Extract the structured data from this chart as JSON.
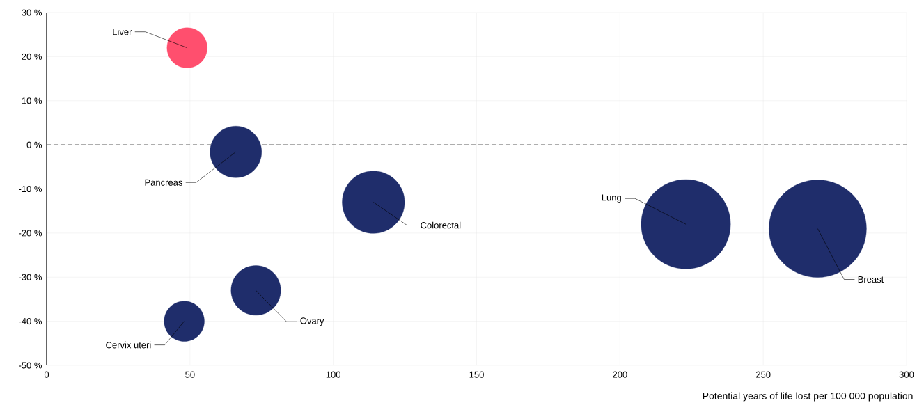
{
  "chart_data": {
    "type": "bubble",
    "xlabel": "Potential years of life lost per 100 000 population",
    "x": [
      49,
      66,
      114,
      223,
      269,
      73,
      48
    ],
    "values": [
      22,
      -1.6,
      -13,
      -18,
      -19,
      -33,
      -40
    ],
    "sizes": [
      0.17,
      0.28,
      0.41,
      0.84,
      1,
      0.26,
      0.17
    ],
    "colors": [
      "#ff4f6e",
      "#1f2d6b",
      "#1f2d6b",
      "#1f2d6b",
      "#1f2d6b",
      "#1f2d6b",
      "#1f2d6b"
    ],
    "xlim": [
      0,
      300
    ],
    "ylim": [
      -50,
      30
    ],
    "xticks": [
      0,
      50,
      100,
      150,
      200,
      250,
      300
    ],
    "yticks": [
      {
        "value": -50,
        "label": "-50 %"
      },
      {
        "value": -40,
        "label": "-40 %"
      },
      {
        "value": -30,
        "label": "-30 %"
      },
      {
        "value": -20,
        "label": "-20 %"
      },
      {
        "value": -10,
        "label": "-10 %"
      },
      {
        "value": 0,
        "label": "0 %"
      },
      {
        "value": 10,
        "label": "10 %"
      },
      {
        "value": 20,
        "label": "20 %"
      },
      {
        "value": 30,
        "label": "30 %"
      }
    ],
    "grid": true,
    "ref_lines": [
      {
        "axis": "y",
        "value": 0,
        "color": "#000000",
        "line_style": "dashed"
      }
    ],
    "annotations": [
      {
        "text": "Liver",
        "x": 49,
        "y": 22
      },
      {
        "text": "Pancreas",
        "x": 66,
        "y": -1.6
      },
      {
        "text": "Colorectal",
        "x": 114,
        "y": -13
      },
      {
        "text": "Lung",
        "x": 223,
        "y": -18
      },
      {
        "text": "Breast",
        "x": 269,
        "y": -19
      },
      {
        "text": "Ovary",
        "x": 73,
        "y": -33
      },
      {
        "text": "Cervix uteri",
        "x": 48,
        "y": -40
      }
    ]
  }
}
